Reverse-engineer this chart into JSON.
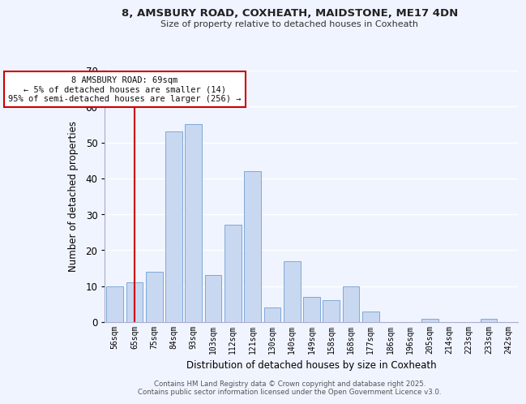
{
  "title": "8, AMSBURY ROAD, COXHEATH, MAIDSTONE, ME17 4DN",
  "subtitle": "Size of property relative to detached houses in Coxheath",
  "xlabel": "Distribution of detached houses by size in Coxheath",
  "ylabel": "Number of detached properties",
  "bar_color": "#c8d8f0",
  "bar_edge_color": "#7fa8d8",
  "categories": [
    "56sqm",
    "65sqm",
    "75sqm",
    "84sqm",
    "93sqm",
    "103sqm",
    "112sqm",
    "121sqm",
    "130sqm",
    "140sqm",
    "149sqm",
    "158sqm",
    "168sqm",
    "177sqm",
    "186sqm",
    "196sqm",
    "205sqm",
    "214sqm",
    "223sqm",
    "233sqm",
    "242sqm"
  ],
  "values": [
    10,
    11,
    14,
    53,
    55,
    13,
    27,
    42,
    4,
    17,
    7,
    6,
    10,
    3,
    0,
    0,
    1,
    0,
    0,
    1,
    0
  ],
  "vline_x": 1,
  "vline_color": "#cc0000",
  "ylim": [
    0,
    70
  ],
  "yticks": [
    0,
    10,
    20,
    30,
    40,
    50,
    60,
    70
  ],
  "annotation_text": "8 AMSBURY ROAD: 69sqm\n← 5% of detached houses are smaller (14)\n95% of semi-detached houses are larger (256) →",
  "annotation_box_color": "#ffffff",
  "annotation_box_edge": "#cc0000",
  "footer1": "Contains HM Land Registry data © Crown copyright and database right 2025.",
  "footer2": "Contains public sector information licensed under the Open Government Licence v3.0.",
  "background_color": "#f0f4ff",
  "grid_color": "#ffffff"
}
